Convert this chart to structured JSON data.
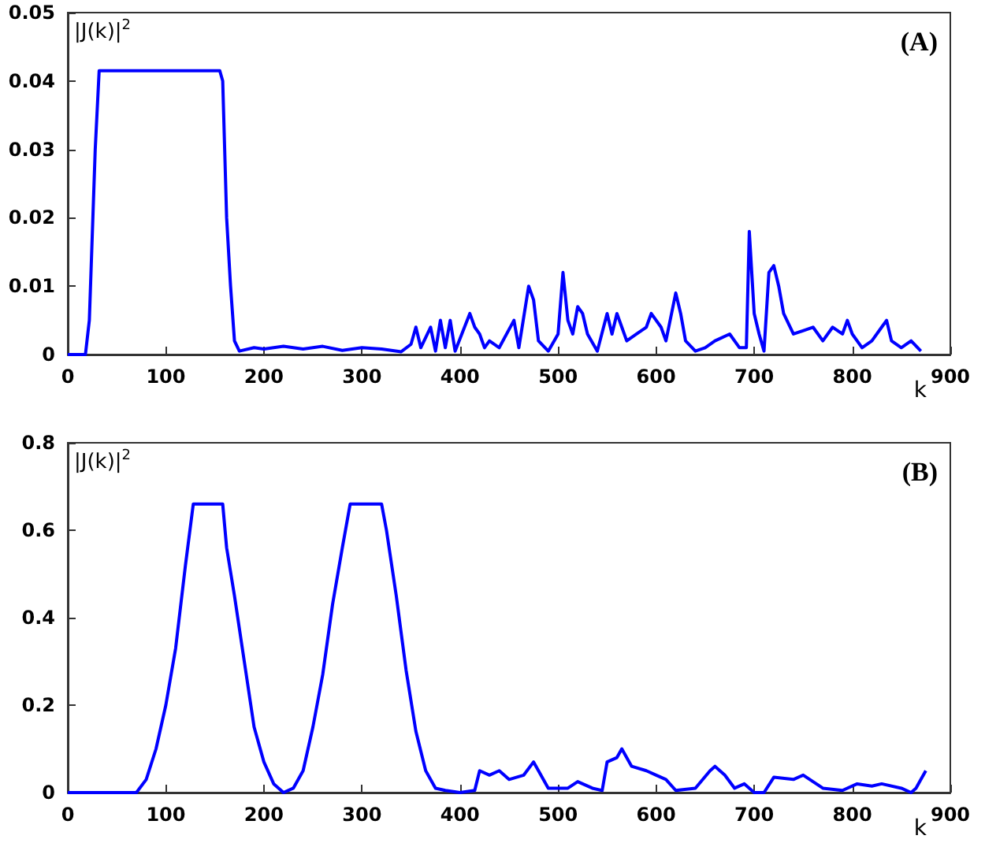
{
  "chart_data": [
    {
      "type": "line",
      "ylabel": "|J(k)|$^{2}$",
      "xlabel": "k",
      "annotations": [
        "(A)"
      ],
      "marker": "none",
      "xlim": [
        0,
        900
      ],
      "xticks": [
        0,
        100,
        200,
        300,
        400,
        500,
        600,
        700,
        800,
        900
      ],
      "ylim": [
        0,
        0.05
      ],
      "yticks": [
        0,
        0.01,
        0.02,
        0.03,
        0.04,
        0.05
      ],
      "x": [
        0,
        18,
        22,
        28,
        32,
        155,
        158,
        162,
        166,
        170,
        175,
        190,
        200,
        220,
        240,
        260,
        280,
        300,
        320,
        340,
        350,
        355,
        360,
        370,
        375,
        380,
        385,
        390,
        395,
        410,
        415,
        420,
        425,
        430,
        440,
        455,
        460,
        470,
        475,
        480,
        490,
        500,
        505,
        510,
        515,
        520,
        525,
        530,
        540,
        550,
        555,
        560,
        565,
        570,
        580,
        590,
        595,
        605,
        610,
        620,
        625,
        630,
        640,
        650,
        660,
        675,
        685,
        692,
        695,
        700,
        705,
        710,
        715,
        720,
        725,
        730,
        740,
        760,
        770,
        780,
        790,
        795,
        800,
        810,
        820,
        830,
        835,
        840,
        850,
        860,
        870
      ],
      "values": [
        0,
        0,
        0.005,
        0.03,
        0.0415,
        0.0415,
        0.04,
        0.02,
        0.01,
        0.002,
        0.0005,
        0.001,
        0.0008,
        0.0012,
        0.0008,
        0.0012,
        0.0006,
        0.001,
        0.0008,
        0.0004,
        0.0015,
        0.004,
        0.001,
        0.004,
        0.0005,
        0.005,
        0.001,
        0.005,
        0.0005,
        0.006,
        0.004,
        0.003,
        0.001,
        0.002,
        0.001,
        0.005,
        0.001,
        0.01,
        0.008,
        0.002,
        0.0005,
        0.003,
        0.012,
        0.005,
        0.003,
        0.007,
        0.006,
        0.003,
        0.0005,
        0.006,
        0.003,
        0.006,
        0.004,
        0.002,
        0.003,
        0.004,
        0.006,
        0.004,
        0.002,
        0.009,
        0.006,
        0.002,
        0.0005,
        0.001,
        0.002,
        0.003,
        0.001,
        0.001,
        0.018,
        0.006,
        0.003,
        0.0005,
        0.012,
        0.013,
        0.01,
        0.006,
        0.003,
        0.004,
        0.002,
        0.004,
        0.003,
        0.005,
        0.003,
        0.001,
        0.002,
        0.004,
        0.005,
        0.002,
        0.001,
        0.002,
        0.0005
      ],
      "color": "#0000ff"
    },
    {
      "type": "line",
      "ylabel": "|J(k)|$^{2}$",
      "xlabel": "k",
      "annotations": [
        "(B)"
      ],
      "marker": "none",
      "xlim": [
        0,
        900
      ],
      "xticks": [
        0,
        100,
        200,
        300,
        400,
        500,
        600,
        700,
        800,
        900
      ],
      "ylim": [
        0,
        0.8
      ],
      "yticks": [
        0,
        0.2,
        0.4,
        0.6,
        0.8
      ],
      "x": [
        0,
        70,
        80,
        90,
        100,
        110,
        120,
        128,
        158,
        162,
        170,
        180,
        190,
        200,
        210,
        220,
        230,
        240,
        250,
        260,
        270,
        280,
        288,
        320,
        325,
        335,
        345,
        355,
        365,
        375,
        385,
        400,
        415,
        420,
        430,
        440,
        450,
        465,
        475,
        480,
        490,
        510,
        520,
        535,
        545,
        550,
        560,
        565,
        575,
        590,
        600,
        610,
        620,
        640,
        655,
        660,
        670,
        680,
        690,
        700,
        710,
        720,
        740,
        750,
        760,
        770,
        790,
        805,
        820,
        830,
        850,
        860,
        865,
        870,
        875
      ],
      "values": [
        0,
        0,
        0.03,
        0.1,
        0.2,
        0.33,
        0.52,
        0.66,
        0.66,
        0.56,
        0.45,
        0.3,
        0.15,
        0.07,
        0.02,
        0,
        0.01,
        0.05,
        0.15,
        0.27,
        0.43,
        0.56,
        0.66,
        0.66,
        0.6,
        0.45,
        0.28,
        0.14,
        0.05,
        0.01,
        0.005,
        0,
        0.005,
        0.05,
        0.04,
        0.05,
        0.03,
        0.04,
        0.07,
        0.05,
        0.01,
        0.01,
        0.025,
        0.01,
        0.005,
        0.07,
        0.08,
        0.1,
        0.06,
        0.05,
        0.04,
        0.03,
        0.005,
        0.01,
        0.05,
        0.06,
        0.04,
        0.01,
        0.02,
        0,
        0,
        0.035,
        0.03,
        0.04,
        0.025,
        0.01,
        0.005,
        0.02,
        0.015,
        0.02,
        0.01,
        0,
        0.01,
        0.03,
        0.05
      ],
      "color": "#0000ff"
    }
  ]
}
